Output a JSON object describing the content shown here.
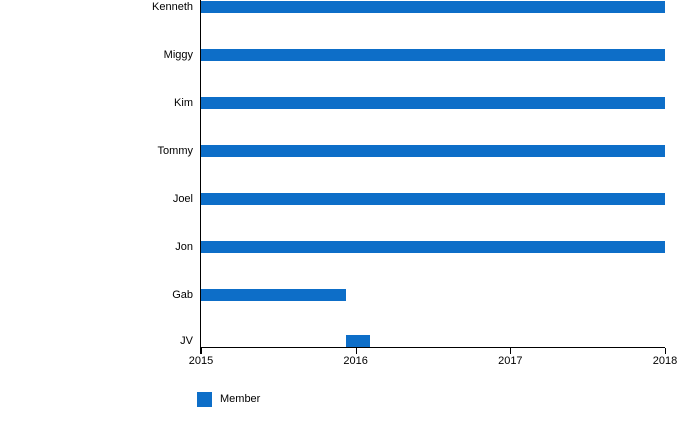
{
  "chart_data": {
    "type": "bar",
    "orientation": "horizontal",
    "title": "",
    "xlabel": "",
    "ylabel": "",
    "categories": [
      "Kenneth",
      "Miggy",
      "Kim",
      "Tommy",
      "Joel",
      "Jon",
      "Gab",
      "JV"
    ],
    "series": [
      {
        "name": "Member",
        "color": "#0d6ec8",
        "ranges": [
          {
            "category": "Kenneth",
            "start": 2015,
            "end": 2018
          },
          {
            "category": "Miggy",
            "start": 2015,
            "end": 2018
          },
          {
            "category": "Kim",
            "start": 2015,
            "end": 2018
          },
          {
            "category": "Tommy",
            "start": 2015,
            "end": 2018
          },
          {
            "category": "Joel",
            "start": 2015,
            "end": 2018
          },
          {
            "category": "Jon",
            "start": 2015,
            "end": 2018
          },
          {
            "category": "Gab",
            "start": 2015,
            "end": 2015.94
          },
          {
            "category": "JV",
            "start": 2015.94,
            "end": 2016.09
          }
        ]
      }
    ],
    "xlim": [
      2015,
      2018
    ],
    "x_ticks": [
      "2015",
      "2016",
      "2017",
      "2018"
    ],
    "grid": false,
    "axis_color": "#000000",
    "legend": {
      "position": "bottom-left",
      "label": "Member"
    }
  }
}
